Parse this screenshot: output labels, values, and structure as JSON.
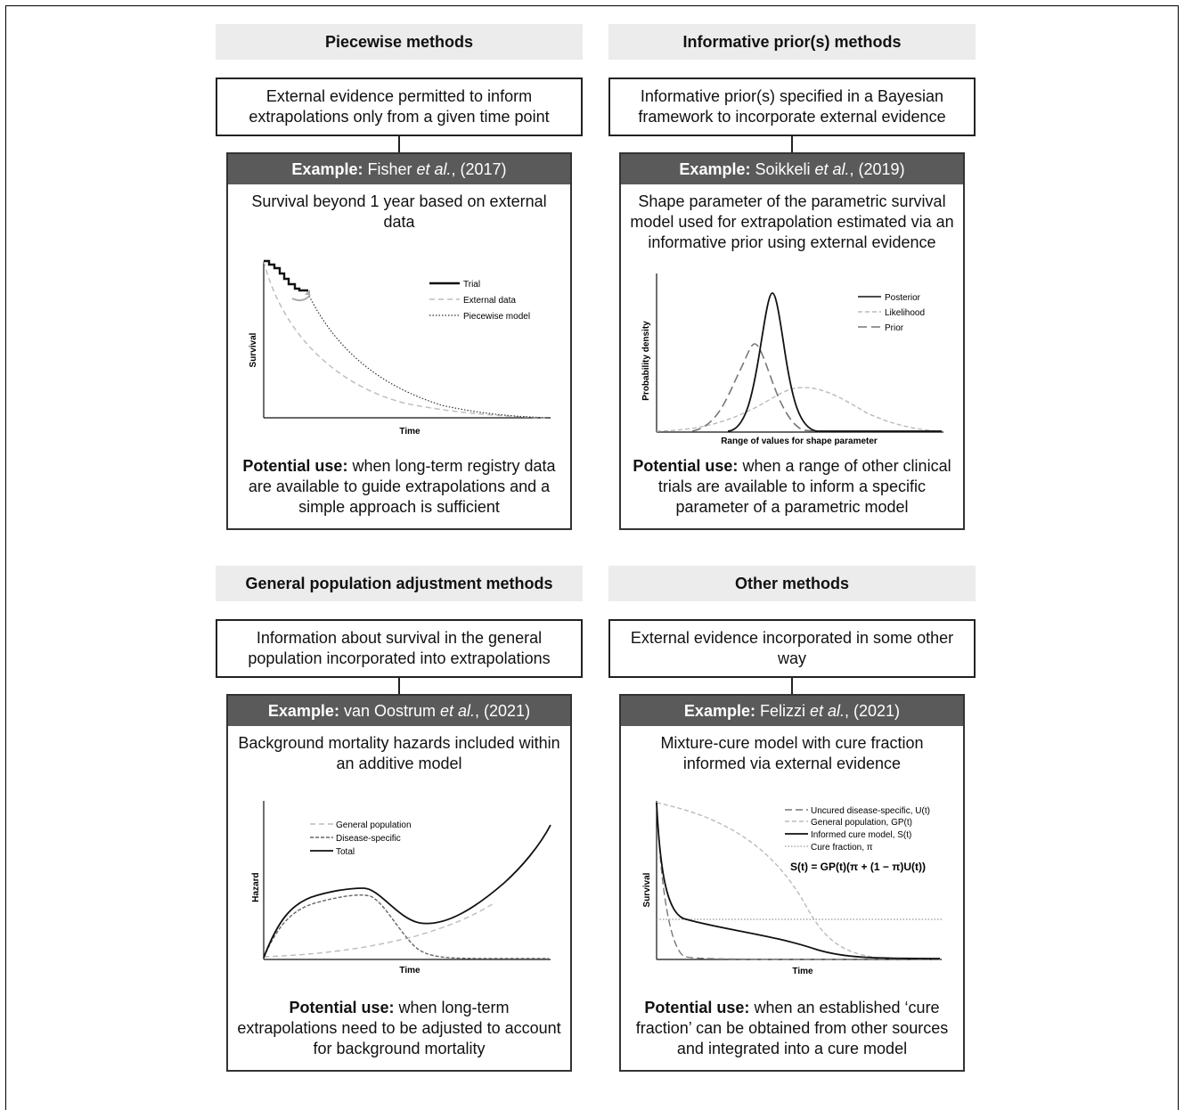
{
  "panels": [
    {
      "header": "Piecewise methods",
      "description": "External evidence permitted to inform extrapolations only from a given time point",
      "example_label": "Example:",
      "example_author": "Fisher",
      "example_etal": "et al.",
      "example_year": ", (2017)",
      "example_description": "Survival beyond 1 year based on external data",
      "use_label": "Potential use:",
      "use_text": " when long-term registry data are available to guide extrapolations and a simple approach is sufficient",
      "chart": {
        "xlabel": "Time",
        "ylabel": "Survival",
        "legend": [
          "Trial",
          "External data",
          "Piecewise model"
        ]
      }
    },
    {
      "header": "Informative prior(s) methods",
      "description": "Informative prior(s) specified in a Bayesian framework to incorporate external evidence",
      "example_label": "Example:",
      "example_author": "Soikkeli",
      "example_etal": "et al.",
      "example_year": ", (2019)",
      "example_description": "Shape parameter of the parametric survival model used for extrapolation estimated via an informative prior using external evidence",
      "use_label": "Potential use:",
      "use_text": " when a range of other clinical trials are available to inform a specific parameter of a parametric model",
      "chart": {
        "xlabel": "Range of values for shape parameter",
        "ylabel": "Probability density",
        "legend": [
          "Posterior",
          "Likelihood",
          "Prior"
        ]
      }
    },
    {
      "header": "General population adjustment methods",
      "description": "Information about survival in the general population incorporated into extrapolations",
      "example_label": "Example:",
      "example_author": "van Oostrum",
      "example_etal": "et al.",
      "example_year": ", (2021)",
      "example_description": "Background mortality hazards included within an additive model",
      "use_label": "Potential use:",
      "use_text": " when long-term extrapolations need to be adjusted to account for background mortality",
      "chart": {
        "xlabel": "Time",
        "ylabel": "Hazard",
        "legend": [
          "General population",
          "Disease-specific",
          "Total"
        ]
      }
    },
    {
      "header": "Other methods",
      "description": "External evidence incorporated in some other way",
      "example_label": "Example:",
      "example_author": "Felizzi",
      "example_etal": "et al.",
      "example_year": ", (2021)",
      "example_description": "Mixture-cure model with cure fraction informed via external evidence",
      "use_label": "Potential use:",
      "use_text": " when an established ‘cure fraction’ can be obtained from other sources and integrated into a cure model",
      "chart": {
        "xlabel": "Time",
        "ylabel": "Survival",
        "legend": [
          "Uncured disease-specific, U(t)",
          "General population, GP(t)",
          "Informed cure model, S(t)",
          "Cure fraction, π"
        ],
        "formula": "S(t) = GP(t)(π + (1 − π)U(t))"
      }
    }
  ]
}
